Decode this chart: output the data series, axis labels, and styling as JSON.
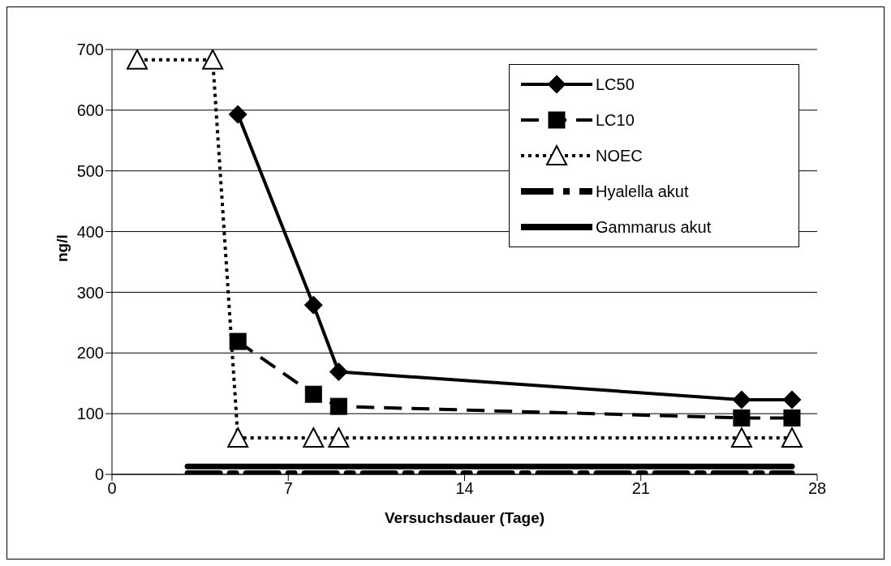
{
  "chart_data": {
    "type": "line",
    "xlabel": "Versuchsdauer (Tage)",
    "ylabel": "ng/l",
    "xlim": [
      0,
      28
    ],
    "xticks": [
      0,
      7,
      14,
      21,
      28
    ],
    "ylim": [
      0,
      700
    ],
    "yticks": [
      0,
      100,
      200,
      300,
      400,
      500,
      600,
      700
    ],
    "grid": "y",
    "legend": "top right",
    "series": [
      {
        "name": "LC50",
        "color": "#000000",
        "marker": "diamond",
        "line_style": "solid",
        "x": [
          5,
          8,
          9,
          25,
          27
        ],
        "values": [
          593,
          279,
          169,
          123,
          123
        ]
      },
      {
        "name": "LC10",
        "color": "#000000",
        "marker": "square",
        "line_style": "dashed",
        "x": [
          5,
          8,
          9,
          25,
          27
        ],
        "values": [
          219,
          132,
          112,
          93,
          93
        ]
      },
      {
        "name": "NOEC",
        "color": "#000000",
        "marker": "triangle",
        "line_style": "dotted",
        "x": [
          1,
          4,
          5,
          8,
          9,
          25,
          27
        ],
        "values": [
          683,
          683,
          60,
          60,
          60,
          60,
          60
        ]
      },
      {
        "name": "Hyalella akut",
        "color": "#000000",
        "marker": "none",
        "line_style": "dashed",
        "x": [
          3,
          27
        ],
        "values": [
          2,
          2
        ]
      },
      {
        "name": "Gammarus akut",
        "color": "#000000",
        "marker": "none",
        "line_style": "solid",
        "x": [
          3,
          27
        ],
        "values": [
          13,
          13
        ]
      }
    ]
  }
}
